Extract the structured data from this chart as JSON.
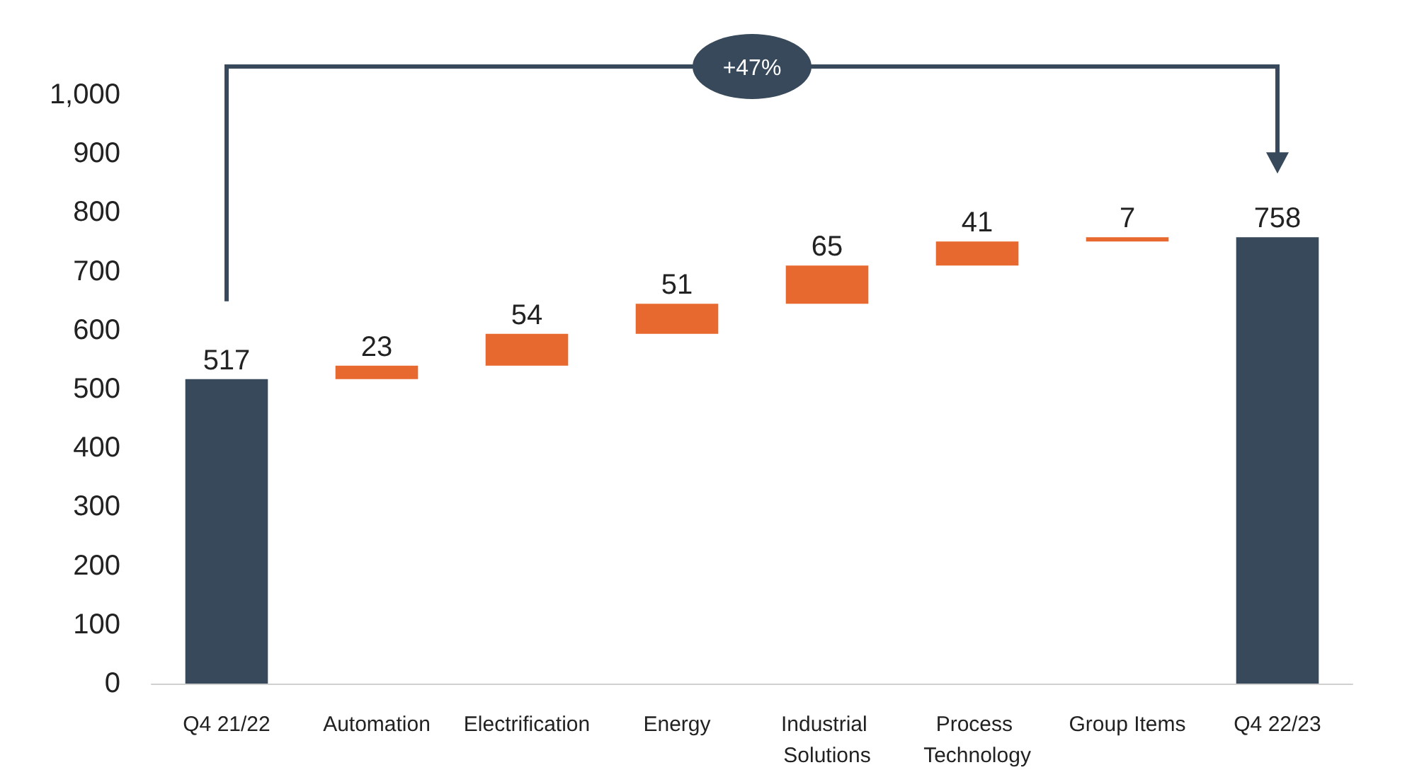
{
  "chart_data": {
    "type": "bar",
    "categories": [
      "Q4 21/22",
      "Automation",
      "Electrification",
      "Energy",
      "Industrial Solutions",
      "Process Technology",
      "Group Items",
      "Q4 22/23"
    ],
    "values": [
      517,
      23,
      54,
      51,
      65,
      41,
      7,
      758
    ],
    "base": [
      0,
      517,
      540,
      594,
      645,
      710,
      751,
      0
    ],
    "colors": [
      "#37495a",
      "#e8692f",
      "#e8692f",
      "#e8692f",
      "#e8692f",
      "#e8692f",
      "#e8692f",
      "#37495a"
    ],
    "ylim": [
      0,
      1000
    ],
    "yticks": [
      0,
      100,
      200,
      300,
      400,
      500,
      600,
      700,
      800,
      900,
      {
        "value": 1000,
        "label": "1,000"
      }
    ],
    "data_labels": true,
    "grid": false,
    "annotations": [
      "+47%"
    ]
  }
}
